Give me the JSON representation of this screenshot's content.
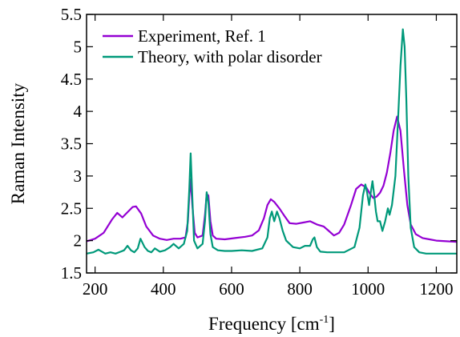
{
  "chart_data": {
    "type": "line",
    "xlabel": "Frequency [cm",
    "xlabel_sup": "-1",
    "xlabel_suffix": "]",
    "ylabel": "Raman Intensity",
    "xlim": [
      175,
      1260
    ],
    "ylim": [
      1.5,
      5.5
    ],
    "xticks": [
      200,
      400,
      600,
      800,
      1000,
      1200
    ],
    "xtick_labels": [
      "200",
      "400",
      "600",
      "800",
      "1000",
      "1200"
    ],
    "yticks": [
      1.5,
      2,
      2.5,
      3,
      3.5,
      4,
      4.5,
      5,
      5.5
    ],
    "ytick_labels": [
      "1.5",
      "2",
      "2.5",
      "3",
      "3.5",
      "4",
      "4.5",
      "5",
      "5.5"
    ],
    "grid": false,
    "legend_position": "top-left",
    "series": [
      {
        "name": "Experiment, Ref. 1",
        "color": "#9400d3",
        "x": [
          175,
          200,
          225,
          250,
          265,
          280,
          295,
          310,
          320,
          335,
          350,
          370,
          390,
          410,
          430,
          450,
          465,
          472,
          476,
          480,
          485,
          492,
          500,
          515,
          522,
          527,
          532,
          538,
          545,
          555,
          580,
          610,
          640,
          660,
          680,
          695,
          705,
          715,
          725,
          740,
          755,
          770,
          790,
          810,
          830,
          850,
          870,
          885,
          900,
          915,
          930,
          950,
          965,
          980,
          995,
          1005,
          1015,
          1025,
          1035,
          1045,
          1055,
          1065,
          1075,
          1085,
          1095,
          1105,
          1115,
          1125,
          1140,
          1160,
          1180,
          1200,
          1230,
          1260
        ],
        "y": [
          1.99,
          2.03,
          2.12,
          2.33,
          2.43,
          2.36,
          2.44,
          2.52,
          2.53,
          2.42,
          2.22,
          2.08,
          2.03,
          2.01,
          2.03,
          2.03,
          2.05,
          2.3,
          2.7,
          2.95,
          2.55,
          2.12,
          2.05,
          2.08,
          2.4,
          2.72,
          2.7,
          2.3,
          2.08,
          2.03,
          2.02,
          2.04,
          2.06,
          2.08,
          2.16,
          2.35,
          2.55,
          2.64,
          2.6,
          2.5,
          2.38,
          2.27,
          2.26,
          2.28,
          2.3,
          2.25,
          2.22,
          2.15,
          2.08,
          2.12,
          2.25,
          2.55,
          2.8,
          2.87,
          2.82,
          2.73,
          2.66,
          2.68,
          2.74,
          2.85,
          3.05,
          3.35,
          3.7,
          3.92,
          3.7,
          3.1,
          2.55,
          2.25,
          2.1,
          2.04,
          2.02,
          2.0,
          1.99,
          1.98
        ]
      },
      {
        "name": "Theory, with polar disorder",
        "color": "#00997a",
        "x": [
          175,
          195,
          210,
          230,
          245,
          260,
          275,
          285,
          295,
          305,
          315,
          325,
          333,
          345,
          355,
          365,
          375,
          390,
          405,
          420,
          430,
          445,
          460,
          470,
          476,
          480,
          484,
          490,
          500,
          515,
          522,
          527,
          532,
          538,
          545,
          560,
          580,
          600,
          630,
          660,
          690,
          705,
          712,
          718,
          725,
          733,
          740,
          750,
          760,
          780,
          800,
          815,
          830,
          838,
          843,
          850,
          860,
          880,
          900,
          930,
          960,
          975,
          985,
          992,
          997,
          1003,
          1008,
          1013,
          1018,
          1023,
          1028,
          1035,
          1042,
          1050,
          1058,
          1063,
          1070,
          1080,
          1088,
          1095,
          1102,
          1107,
          1112,
          1118,
          1125,
          1135,
          1150,
          1170,
          1200,
          1230,
          1260
        ],
        "y": [
          1.8,
          1.82,
          1.86,
          1.8,
          1.82,
          1.8,
          1.83,
          1.85,
          1.92,
          1.85,
          1.82,
          1.88,
          2.03,
          1.9,
          1.84,
          1.82,
          1.88,
          1.83,
          1.85,
          1.9,
          1.95,
          1.88,
          1.95,
          2.15,
          2.8,
          3.35,
          2.8,
          2.0,
          1.88,
          1.95,
          2.3,
          2.75,
          2.6,
          2.1,
          1.9,
          1.85,
          1.84,
          1.84,
          1.85,
          1.84,
          1.88,
          2.05,
          2.35,
          2.45,
          2.3,
          2.45,
          2.35,
          2.15,
          2.0,
          1.9,
          1.88,
          1.92,
          1.92,
          2.02,
          2.05,
          1.9,
          1.83,
          1.82,
          1.82,
          1.82,
          1.9,
          2.2,
          2.7,
          2.87,
          2.75,
          2.55,
          2.75,
          2.92,
          2.7,
          2.45,
          2.3,
          2.3,
          2.15,
          2.3,
          2.5,
          2.4,
          2.55,
          3.0,
          3.9,
          4.7,
          5.27,
          5.0,
          4.2,
          3.0,
          2.2,
          1.9,
          1.82,
          1.8,
          1.8,
          1.8,
          1.8
        ]
      }
    ]
  }
}
